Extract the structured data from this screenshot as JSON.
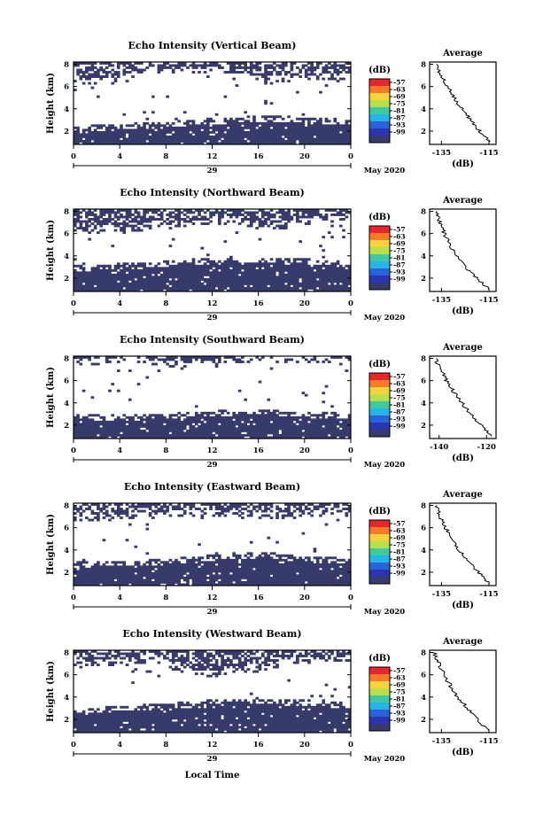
{
  "figure": {
    "xlabel": "Local Time",
    "date_label": "May 2020",
    "day_label": "29",
    "colorbar_unit": "(dB)",
    "colorbar_ticks": [
      "-57",
      "-63",
      "-69",
      "-75",
      "-81",
      "-87",
      "-93",
      "-99"
    ],
    "colorbar_colors": [
      "#e8262a",
      "#f57a2a",
      "#f6d23d",
      "#b7e04a",
      "#3ec9a0",
      "#27b4e8",
      "#2a63d8",
      "#2b35b0",
      "#373b6b"
    ],
    "echo_color": "#373b6b"
  },
  "chart_data": [
    {
      "type": "heatmap",
      "title": "Echo Intensity (Vertical Beam)",
      "ylabel": "Height (km)",
      "x_ticks": [
        "0",
        "4",
        "8",
        "12",
        "16",
        "20",
        "0"
      ],
      "y_ticks": [
        "2",
        "4",
        "6",
        "8"
      ],
      "xlim": [
        0,
        24
      ],
      "ylim": [
        0.8,
        8.2
      ],
      "lower_layer_top_km": [
        2.2,
        2.3,
        2.4,
        2.5,
        2.7,
        2.9,
        3.0,
        3.1,
        3.0,
        2.9,
        2.8
      ],
      "upper_layer_bottom_km": [
        6.6,
        6.3,
        6.7,
        7.2,
        7.4,
        7.5,
        7.3,
        6.4,
        6.7,
        6.8,
        6.9
      ],
      "avg": {
        "title": "Average",
        "xlabel": "(dB)",
        "x_ticks": [
          "-135",
          "-115"
        ],
        "y_ticks": [
          "2",
          "4",
          "6",
          "8"
        ],
        "xlim": [
          -140,
          -112
        ],
        "ylim": [
          0.8,
          8.2
        ],
        "heights_km": [
          1.0,
          1.8,
          2.6,
          3.4,
          4.2,
          5.0,
          5.8,
          6.6,
          7.4,
          8.0
        ],
        "values_db": [
          -114.5,
          -118,
          -121,
          -124,
          -127,
          -129.5,
          -131.5,
          -133.5,
          -135.5,
          -137
        ]
      }
    },
    {
      "type": "heatmap",
      "title": "Echo Intensity (Northward Beam)",
      "ylabel": "Height (km)",
      "x_ticks": [
        "0",
        "4",
        "8",
        "12",
        "16",
        "20",
        "0"
      ],
      "y_ticks": [
        "2",
        "4",
        "6",
        "8"
      ],
      "xlim": [
        0,
        24
      ],
      "ylim": [
        0.8,
        8.2
      ],
      "lower_layer_top_km": [
        2.9,
        3.0,
        3.1,
        3.2,
        3.4,
        3.6,
        3.6,
        3.6,
        3.5,
        3.4,
        3.3
      ],
      "upper_layer_bottom_km": [
        6.4,
        6.2,
        6.3,
        6.6,
        6.8,
        7.0,
        7.0,
        6.5,
        6.8,
        7.2,
        7.4
      ],
      "avg": {
        "title": "Average",
        "xlabel": "(dB)",
        "x_ticks": [
          "-135",
          "-115"
        ],
        "y_ticks": [
          "2",
          "4",
          "6",
          "8"
        ],
        "xlim": [
          -140,
          -112
        ],
        "ylim": [
          0.8,
          8.2
        ],
        "heights_km": [
          1.0,
          1.8,
          2.6,
          3.4,
          4.2,
          5.0,
          5.8,
          6.6,
          7.4,
          8.0
        ],
        "values_db": [
          -115,
          -119,
          -123,
          -126,
          -129,
          -131,
          -133,
          -134.5,
          -136,
          -137
        ]
      }
    },
    {
      "type": "heatmap",
      "title": "Echo Intensity (Southward Beam)",
      "ylabel": "Height (km)",
      "x_ticks": [
        "0",
        "4",
        "8",
        "12",
        "16",
        "20",
        "0"
      ],
      "y_ticks": [
        "2",
        "4",
        "6",
        "8"
      ],
      "xlim": [
        0,
        24
      ],
      "ylim": [
        0.8,
        8.2
      ],
      "lower_layer_top_km": [
        2.6,
        2.7,
        2.7,
        2.8,
        2.9,
        3.0,
        3.2,
        3.2,
        3.0,
        2.9,
        2.8
      ],
      "upper_layer_bottom_km": [
        7.6,
        7.7,
        7.8,
        7.6,
        7.2,
        7.5,
        7.8,
        7.8,
        7.9,
        7.8,
        7.6
      ],
      "avg": {
        "title": "Average",
        "xlabel": "(dB)",
        "x_ticks": [
          "-140",
          "-120"
        ],
        "y_ticks": [
          "2",
          "4",
          "6",
          "8"
        ],
        "xlim": [
          -144,
          -116
        ],
        "ylim": [
          0.8,
          8.2
        ],
        "heights_km": [
          1.0,
          1.8,
          2.6,
          3.4,
          4.2,
          5.0,
          5.8,
          6.6,
          7.4,
          8.0
        ],
        "values_db": [
          -118,
          -121.5,
          -125,
          -128,
          -131,
          -133.5,
          -136,
          -138,
          -140,
          -141.5
        ]
      }
    },
    {
      "type": "heatmap",
      "title": "Echo Intensity (Eastward Beam)",
      "ylabel": "Height (km)",
      "x_ticks": [
        "0",
        "4",
        "8",
        "12",
        "16",
        "20",
        "0"
      ],
      "y_ticks": [
        "2",
        "4",
        "6",
        "8"
      ],
      "xlim": [
        0,
        24
      ],
      "ylim": [
        0.8,
        8.2
      ],
      "lower_layer_top_km": [
        2.7,
        2.8,
        2.8,
        2.9,
        3.1,
        3.3,
        3.5,
        3.5,
        3.3,
        3.1,
        3.0
      ],
      "upper_layer_bottom_km": [
        6.9,
        6.8,
        7.0,
        7.1,
        7.2,
        7.3,
        7.2,
        7.0,
        7.1,
        7.3,
        7.2
      ],
      "avg": {
        "title": "Average",
        "xlabel": "(dB)",
        "x_ticks": [
          "-135",
          "-115"
        ],
        "y_ticks": [
          "2",
          "4",
          "6",
          "8"
        ],
        "xlim": [
          -140,
          -112
        ],
        "ylim": [
          0.8,
          8.2
        ],
        "heights_km": [
          1.0,
          1.8,
          2.6,
          3.4,
          4.2,
          5.0,
          5.8,
          6.6,
          7.4,
          8.0
        ],
        "values_db": [
          -115,
          -118.5,
          -122,
          -125,
          -128,
          -130.5,
          -132.5,
          -134.5,
          -136,
          -137.5
        ]
      }
    },
    {
      "type": "heatmap",
      "title": "Echo Intensity (Westward Beam)",
      "ylabel": "Height (km)",
      "x_ticks": [
        "0",
        "4",
        "8",
        "12",
        "16",
        "20",
        "0"
      ],
      "y_ticks": [
        "2",
        "4",
        "6",
        "8"
      ],
      "xlim": [
        0,
        24
      ],
      "ylim": [
        0.8,
        8.2
      ],
      "lower_layer_top_km": [
        2.8,
        2.9,
        3.0,
        3.1,
        3.3,
        3.5,
        3.6,
        3.6,
        3.5,
        3.4,
        3.2
      ],
      "upper_layer_bottom_km": [
        7.0,
        6.9,
        7.1,
        7.3,
        6.2,
        6.0,
        6.3,
        6.6,
        7.2,
        7.4,
        7.3
      ],
      "avg": {
        "title": "Average",
        "xlabel": "(dB)",
        "x_ticks": [
          "-135",
          "-115"
        ],
        "y_ticks": [
          "2",
          "4",
          "6",
          "8"
        ],
        "xlim": [
          -140,
          -112
        ],
        "ylim": [
          0.8,
          8.2
        ],
        "heights_km": [
          1.0,
          1.8,
          2.6,
          3.4,
          4.2,
          5.0,
          5.8,
          6.6,
          7.4,
          8.0
        ],
        "values_db": [
          -115.5,
          -119,
          -122.5,
          -125.5,
          -128.5,
          -131,
          -133,
          -135,
          -136.5,
          -138
        ]
      }
    }
  ]
}
